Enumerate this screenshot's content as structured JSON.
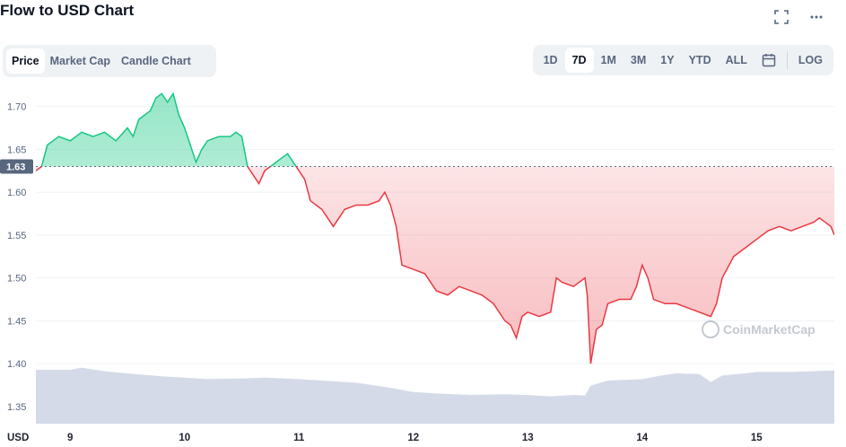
{
  "header": {
    "title": "Flow to USD Chart",
    "fullscreen_icon": "expand-icon",
    "more_icon": "more-horizontal-icon"
  },
  "tabs": [
    {
      "label": "Price",
      "active": true
    },
    {
      "label": "Market Cap",
      "active": false
    },
    {
      "label": "Candle Chart",
      "active": false
    }
  ],
  "ranges": [
    {
      "label": "1D",
      "active": false
    },
    {
      "label": "7D",
      "active": true
    },
    {
      "label": "1M",
      "active": false
    },
    {
      "label": "3M",
      "active": false
    },
    {
      "label": "1Y",
      "active": false
    },
    {
      "label": "YTD",
      "active": false
    },
    {
      "label": "ALL",
      "active": false
    }
  ],
  "calendar_icon": "calendar-icon",
  "log_label": "LOG",
  "watermark": "CoinMarketCap",
  "currency_label": "USD",
  "colors": {
    "up": "#16c784",
    "down": "#ea3943",
    "volume": "#cfd6e4",
    "grid": "#eff2f5",
    "text": "#58667e"
  },
  "chart_data": {
    "type": "area",
    "series": [
      {
        "x": [
          8.7,
          8.75,
          8.8,
          8.9,
          9.0,
          9.1,
          9.2,
          9.3,
          9.4,
          9.5,
          9.55,
          9.6,
          9.7,
          9.75,
          9.8,
          9.85,
          9.9,
          9.95,
          10.0,
          10.05,
          10.1,
          10.15,
          10.2,
          10.3,
          10.4,
          10.45,
          10.5,
          10.55,
          10.6,
          10.65,
          10.7,
          10.8,
          10.85,
          10.9,
          10.95,
          11.0,
          11.05,
          11.1,
          11.2,
          11.3,
          11.4,
          11.5,
          11.6,
          11.7,
          11.75,
          11.8,
          11.85,
          11.9,
          12.0,
          12.1,
          12.2,
          12.3,
          12.4,
          12.5,
          12.6,
          12.7,
          12.8,
          12.85,
          12.9,
          12.95,
          13.0,
          13.1,
          13.2,
          13.25,
          13.3,
          13.4,
          13.5,
          13.52,
          13.55,
          13.6,
          13.65,
          13.7,
          13.8,
          13.9,
          13.95,
          14.0,
          14.05,
          14.1,
          14.2,
          14.3,
          14.4,
          14.5,
          14.6,
          14.65,
          14.7,
          14.8,
          14.9,
          15.0,
          15.1,
          15.2,
          15.3,
          15.4,
          15.5,
          15.55,
          15.6,
          15.65,
          15.68
        ],
        "y": [
          1.625,
          1.63,
          1.655,
          1.665,
          1.66,
          1.67,
          1.665,
          1.67,
          1.66,
          1.675,
          1.665,
          1.685,
          1.695,
          1.71,
          1.715,
          1.705,
          1.715,
          1.69,
          1.675,
          1.655,
          1.635,
          1.65,
          1.66,
          1.665,
          1.665,
          1.67,
          1.665,
          1.63,
          1.62,
          1.61,
          1.625,
          1.635,
          1.64,
          1.645,
          1.635,
          1.625,
          1.615,
          1.59,
          1.58,
          1.56,
          1.58,
          1.585,
          1.585,
          1.59,
          1.6,
          1.585,
          1.56,
          1.515,
          1.51,
          1.505,
          1.485,
          1.48,
          1.49,
          1.485,
          1.48,
          1.47,
          1.45,
          1.445,
          1.43,
          1.455,
          1.46,
          1.455,
          1.46,
          1.5,
          1.495,
          1.49,
          1.5,
          1.48,
          1.4,
          1.44,
          1.445,
          1.47,
          1.475,
          1.475,
          1.49,
          1.515,
          1.5,
          1.475,
          1.47,
          1.47,
          1.465,
          1.46,
          1.455,
          1.47,
          1.5,
          1.525,
          1.535,
          1.545,
          1.555,
          1.56,
          1.555,
          1.56,
          1.565,
          1.57,
          1.565,
          1.56,
          1.55
        ]
      }
    ],
    "reference_price": 1.63,
    "reference_label": "1.63",
    "volume": {
      "x": [
        8.7,
        9.0,
        9.1,
        9.3,
        9.5,
        9.8,
        10.0,
        10.2,
        10.5,
        10.7,
        11.0,
        11.2,
        11.5,
        11.8,
        12.0,
        12.2,
        12.5,
        12.8,
        13.0,
        13.2,
        13.4,
        13.5,
        13.55,
        13.7,
        14.0,
        14.2,
        14.3,
        14.5,
        14.6,
        14.7,
        14.9,
        15.0,
        15.3,
        15.68
      ],
      "y": [
        0.75,
        0.75,
        0.78,
        0.73,
        0.7,
        0.66,
        0.64,
        0.62,
        0.63,
        0.64,
        0.62,
        0.6,
        0.57,
        0.5,
        0.44,
        0.42,
        0.4,
        0.41,
        0.4,
        0.38,
        0.4,
        0.39,
        0.53,
        0.6,
        0.62,
        0.68,
        0.7,
        0.69,
        0.58,
        0.67,
        0.7,
        0.72,
        0.72,
        0.74
      ]
    },
    "xlabel": "",
    "ylabel": "USD",
    "x_ticks": [
      9,
      10,
      11,
      12,
      13,
      14,
      15
    ],
    "x_tick_labels": [
      "9",
      "10",
      "11",
      "12",
      "13",
      "14",
      "15"
    ],
    "y_ticks": [
      1.35,
      1.4,
      1.45,
      1.5,
      1.55,
      1.6,
      1.65,
      1.7
    ],
    "y_tick_labels": [
      "1.35",
      "1.40",
      "1.45",
      "1.50",
      "1.55",
      "1.60",
      "1.65",
      "1.70"
    ],
    "xlim": [
      8.7,
      15.68
    ],
    "ylim": [
      1.33,
      1.73
    ],
    "grid": true
  }
}
